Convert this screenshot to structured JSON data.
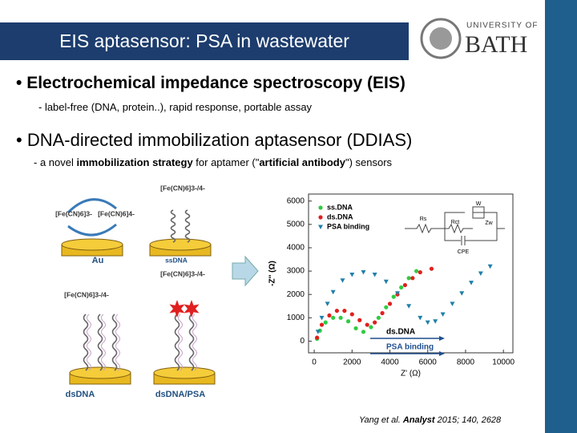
{
  "title": "EIS aptasensor: PSA in wastewater",
  "logo": {
    "line1": "UNIVERSITY OF",
    "line2": "BATH"
  },
  "bullets": [
    {
      "text": "Electrochemical impedance spectroscopy (EIS)",
      "sub": [
        {
          "text": "- label-free (DNA, protein..), rapid response, portable assay",
          "bold": false
        }
      ]
    },
    {
      "text": "DNA-directed immobilization aptasensor (DDIAS)",
      "sub": [
        {
          "text": "- a novel ",
          "bold": false
        },
        {
          "text": "immobilization strategy",
          "bold": true
        },
        {
          "text": " for aptamer (\"",
          "bold": false
        },
        {
          "text": "artificial antibody",
          "bold": true
        },
        {
          "text": "\") sensors",
          "bold": false
        }
      ]
    }
  ],
  "schematic": {
    "labels": [
      "[Fe(CN)6]3-/4-",
      "[Fe(CN)6]3-",
      "[Fe(CN)6]4-",
      "Au",
      "ssDNA",
      "[Fe(CN)6]3-/4-",
      "[Fe(CN)6]3-/4-",
      "dsDNA",
      "dsDNA/PSA"
    ]
  },
  "circuit": [
    "Rs",
    "W",
    "Rct",
    "Zw",
    "CPE"
  ],
  "citation": [
    {
      "text": "Yang et al. ",
      "bold": false
    },
    {
      "text": "Analyst",
      "bold": true
    },
    {
      "text": " 2015; 140, 2628",
      "bold": false
    }
  ],
  "chart_data": {
    "type": "scatter",
    "x_label": "Z' (Ω)",
    "y_label": "-Z'' (Ω)",
    "xlim": [
      -300,
      10500
    ],
    "ylim": [
      -500,
      6300
    ],
    "xticks": [
      0,
      2000,
      4000,
      6000,
      8000,
      10000
    ],
    "yticks": [
      0,
      1000,
      2000,
      3000,
      4000,
      5000,
      6000
    ],
    "annotations": [
      "ds.DNA",
      "PSA binding"
    ],
    "series": [
      {
        "name": "ss.DNA",
        "color": "#2ecc40",
        "marker": "circle",
        "x": [
          150,
          300,
          600,
          1000,
          1400,
          1800,
          2200,
          2600,
          3000,
          3400,
          3800,
          4200,
          4600,
          5000,
          5400
        ],
        "values": [
          100,
          450,
          800,
          1000,
          1000,
          850,
          550,
          400,
          600,
          1000,
          1450,
          1900,
          2300,
          2700,
          3000
        ]
      },
      {
        "name": "ds.DNA",
        "color": "#e0201e",
        "marker": "circle",
        "x": [
          150,
          400,
          800,
          1200,
          1600,
          2000,
          2400,
          2800,
          3200,
          3600,
          4000,
          4400,
          4800,
          5200,
          5600,
          6200
        ],
        "values": [
          150,
          700,
          1100,
          1300,
          1300,
          1150,
          900,
          700,
          800,
          1200,
          1600,
          2000,
          2400,
          2700,
          2950,
          3100
        ]
      },
      {
        "name": "PSA binding",
        "color": "#1f7fa8",
        "marker": "triangle",
        "x": [
          200,
          400,
          700,
          1000,
          1500,
          2000,
          2600,
          3200,
          3800,
          4400,
          5000,
          5600,
          6000,
          6400,
          6800,
          7300,
          7800,
          8300,
          8800,
          9300
        ],
        "values": [
          400,
          1000,
          1600,
          2100,
          2600,
          2850,
          2950,
          2850,
          2550,
          2050,
          1500,
          1000,
          800,
          850,
          1150,
          1600,
          2050,
          2500,
          2900,
          3200
        ]
      }
    ]
  }
}
